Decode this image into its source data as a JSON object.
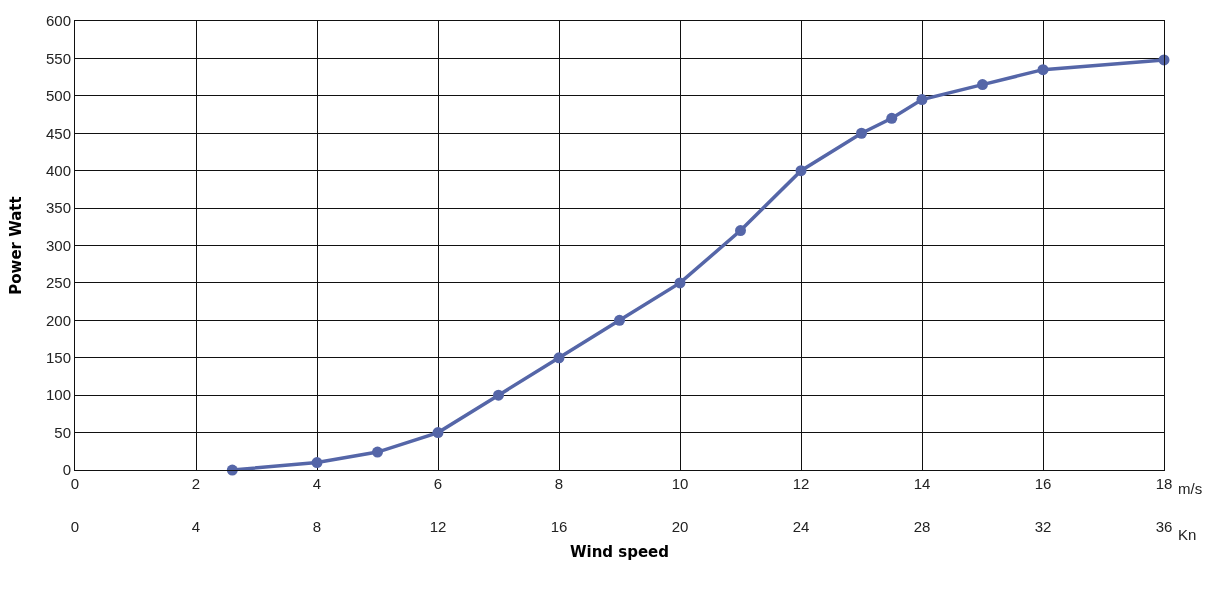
{
  "chart_data": {
    "type": "line",
    "xlabel": "Wind speed",
    "ylabel": "Power Watt",
    "x": [
      2.6,
      4,
      5,
      6,
      7,
      8,
      9,
      10,
      11,
      12,
      13,
      13.5,
      14,
      15,
      16,
      18
    ],
    "series": [
      {
        "color": "#5566a8",
        "values": [
          0,
          10,
          24,
          50,
          100,
          150,
          200,
          250,
          320,
          400,
          450,
          470,
          495,
          515,
          535,
          548
        ]
      }
    ],
    "xlim": [
      0,
      18
    ],
    "xticks": [
      0,
      2,
      4,
      6,
      8,
      10,
      12,
      14,
      16,
      18
    ],
    "x2lim": [
      0,
      36
    ],
    "x2ticks": [
      0,
      4,
      8,
      12,
      16,
      20,
      24,
      28,
      32,
      36
    ],
    "ylim": [
      0,
      600
    ],
    "yticks": [
      0,
      50,
      100,
      150,
      200,
      250,
      300,
      350,
      400,
      450,
      500,
      550,
      600
    ],
    "annotations": [
      "m/s",
      "Kn"
    ],
    "grid": true,
    "marker": "circle",
    "line_style": "solid",
    "legend": false
  }
}
